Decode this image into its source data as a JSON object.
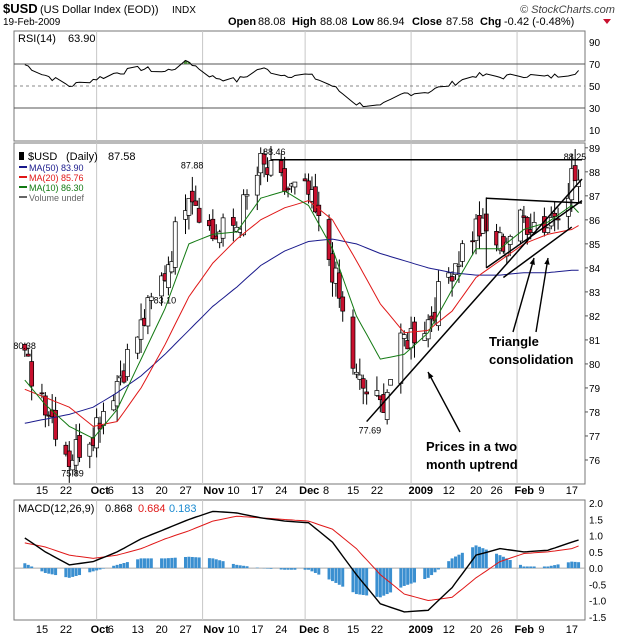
{
  "header": {
    "symbol": "$USD",
    "name": "(US Dollar Index (EOD))",
    "exchange": "INDX",
    "date": "19-Feb-2009",
    "brand": "© StockCharts.com",
    "ohlc": {
      "open_label": "Open",
      "open": "88.08",
      "high_label": "High",
      "high": "88.08",
      "low_label": "Low",
      "low": "86.94",
      "close_label": "Close",
      "close": "87.58",
      "chg_label": "Chg",
      "chg": "-0.42 (-0.48%)"
    }
  },
  "rsi_panel": {
    "label": "RSI(14)",
    "value": "63.90",
    "ticks": [
      "90",
      "70",
      "50",
      "30",
      "10"
    ]
  },
  "price_panel": {
    "title_symbol": "$USD",
    "title_period": "(Daily)",
    "title_value": "87.58",
    "legend": [
      {
        "text": "MA(50) 83.90",
        "color": "#1a1a8c"
      },
      {
        "text": "MA(20) 85.76",
        "color": "#e01818"
      },
      {
        "text": "MA(10) 86.30",
        "color": "#137a13"
      },
      {
        "text": "Volume undef",
        "color": "#666666"
      }
    ],
    "ticks": [
      "89",
      "88",
      "87",
      "86",
      "85",
      "84",
      "83",
      "82",
      "81",
      "80",
      "79",
      "78",
      "77",
      "76"
    ],
    "price_labels": [
      "80.38",
      "75.89",
      "87.88",
      "83.10",
      "88.46",
      "77.69",
      "88.25"
    ],
    "annotations": {
      "triangle": [
        "Triangle",
        "consolidation"
      ],
      "uptrend": [
        "Prices in a two",
        "month uptrend"
      ]
    }
  },
  "macd_panel": {
    "label": "MACD(12,26,9)",
    "v1": "0.868",
    "v2": "0.684",
    "v3": "0.183",
    "ticks": [
      "2.0",
      "1.5",
      "1.0",
      "0.5",
      "0.0",
      "-0.5",
      "-1.0",
      "-1.5"
    ]
  },
  "x_axis": {
    "labels": [
      "15",
      "22",
      "Oct",
      "6",
      "13",
      "20",
      "27",
      "Nov",
      "10",
      "17",
      "24",
      "Dec",
      "8",
      "15",
      "22",
      "2009",
      "12",
      "20",
      "26",
      "Feb",
      "9",
      "17"
    ]
  },
  "colors": {
    "up_candle": "#ffffff",
    "down_candle": "#c8102e",
    "candle_edge": "#000000",
    "ma50": "#1a1a8c",
    "ma20": "#e01818",
    "ma10": "#137a13",
    "rsi_line": "#000000",
    "rsi_fill": "#4a8a3a",
    "macd_line": "#000000",
    "signal_line": "#e01818",
    "hist": "#3a8fd0",
    "macd_v2": "#e01818",
    "macd_v3": "#1a8ad0"
  },
  "chart_data": [
    {
      "type": "line",
      "name": "RSI(14)",
      "x": [
        "2008-09-09",
        "2008-09-16",
        "2008-09-23",
        "2008-09-30",
        "2008-10-07",
        "2008-10-14",
        "2008-10-21",
        "2008-10-28",
        "2008-11-04",
        "2008-11-11",
        "2008-11-18",
        "2008-11-25",
        "2008-12-02",
        "2008-12-09",
        "2008-12-16",
        "2008-12-23",
        "2008-12-30",
        "2009-01-06",
        "2009-01-13",
        "2009-01-20",
        "2009-01-27",
        "2009-02-03",
        "2009-02-10",
        "2009-02-17",
        "2009-02-19"
      ],
      "values": [
        71,
        60,
        50,
        56,
        62,
        66,
        63,
        72,
        58,
        55,
        66,
        60,
        60,
        50,
        34,
        31,
        43,
        45,
        52,
        60,
        58,
        60,
        58,
        62,
        64
      ],
      "ylim": [
        0,
        100
      ]
    },
    {
      "type": "line",
      "name": "$USD (Daily)",
      "x": [
        "2008-09-09",
        "2008-09-16",
        "2008-09-23",
        "2008-09-30",
        "2008-10-07",
        "2008-10-14",
        "2008-10-21",
        "2008-10-28",
        "2008-11-04",
        "2008-11-11",
        "2008-11-18",
        "2008-11-25",
        "2008-12-02",
        "2008-12-09",
        "2008-12-16",
        "2008-12-23",
        "2008-12-30",
        "2009-01-06",
        "2009-01-13",
        "2009-01-20",
        "2009-01-27",
        "2009-02-03",
        "2009-02-10",
        "2009-02-17",
        "2009-02-19"
      ],
      "series": [
        {
          "name": "$USD",
          "values": [
            80.38,
            78.5,
            76.1,
            77.3,
            79.3,
            81.5,
            83.8,
            87.5,
            85.3,
            85.8,
            88.2,
            87.3,
            87.0,
            84.0,
            79.3,
            78.2,
            81.0,
            81.8,
            84.1,
            85.7,
            85.0,
            86.0,
            85.8,
            87.8,
            87.58
          ]
        },
        {
          "name": "MA(50)",
          "values": [
            77.5,
            77.7,
            77.9,
            78.2,
            78.8,
            79.5,
            80.4,
            81.4,
            82.4,
            83.2,
            84.1,
            84.7,
            85.1,
            85.2,
            85.0,
            84.6,
            84.3,
            84.0,
            83.8,
            83.7,
            83.7,
            83.8,
            83.8,
            83.9,
            83.9
          ]
        },
        {
          "name": "MA(20)",
          "values": [
            79.0,
            78.6,
            78.2,
            77.4,
            77.6,
            79.0,
            80.8,
            82.8,
            84.2,
            85.2,
            86.0,
            86.5,
            86.8,
            86.0,
            84.3,
            82.5,
            81.3,
            81.4,
            82.2,
            83.6,
            84.3,
            85.0,
            85.4,
            85.6,
            85.76
          ]
        },
        {
          "name": "MA(10)",
          "values": [
            79.5,
            78.3,
            77.4,
            76.9,
            78.1,
            80.2,
            82.3,
            85.0,
            85.4,
            85.5,
            86.9,
            87.2,
            86.6,
            84.8,
            82.0,
            80.2,
            80.4,
            81.3,
            83.1,
            84.8,
            84.8,
            85.6,
            85.9,
            86.6,
            86.3
          ]
        }
      ],
      "ylim": [
        75,
        89.2
      ]
    },
    {
      "type": "line",
      "name": "MACD(12,26,9)",
      "x": [
        "2008-09-09",
        "2008-09-16",
        "2008-09-23",
        "2008-09-30",
        "2008-10-07",
        "2008-10-14",
        "2008-10-21",
        "2008-10-28",
        "2008-11-04",
        "2008-11-11",
        "2008-11-18",
        "2008-11-25",
        "2008-12-02",
        "2008-12-09",
        "2008-12-16",
        "2008-12-23",
        "2008-12-30",
        "2009-01-06",
        "2009-01-13",
        "2009-01-20",
        "2009-01-27",
        "2009-02-03",
        "2009-02-10",
        "2009-02-17",
        "2009-02-19"
      ],
      "series": [
        {
          "name": "MACD",
          "values": [
            1.0,
            0.5,
            0.1,
            0.2,
            0.5,
            0.9,
            1.2,
            1.5,
            1.75,
            1.7,
            1.55,
            1.45,
            1.4,
            0.8,
            -0.2,
            -1.1,
            -1.35,
            -1.3,
            -0.6,
            0.4,
            0.6,
            0.5,
            0.55,
            0.8,
            0.868
          ]
        },
        {
          "name": "Signal",
          "values": [
            0.8,
            0.65,
            0.4,
            0.3,
            0.4,
            0.6,
            0.9,
            1.15,
            1.45,
            1.6,
            1.55,
            1.5,
            1.45,
            1.2,
            0.6,
            -0.2,
            -0.8,
            -1.0,
            -0.9,
            -0.3,
            0.2,
            0.45,
            0.5,
            0.6,
            0.684
          ]
        },
        {
          "name": "Histogram",
          "values": [
            0.2,
            -0.15,
            -0.3,
            -0.1,
            0.1,
            0.3,
            0.3,
            0.35,
            0.3,
            0.1,
            0.0,
            -0.05,
            -0.05,
            -0.4,
            -0.8,
            -0.9,
            -0.55,
            -0.3,
            0.3,
            0.7,
            0.4,
            0.05,
            0.05,
            0.2,
            0.183
          ]
        }
      ],
      "ylim": [
        -1.6,
        2.1
      ]
    }
  ]
}
